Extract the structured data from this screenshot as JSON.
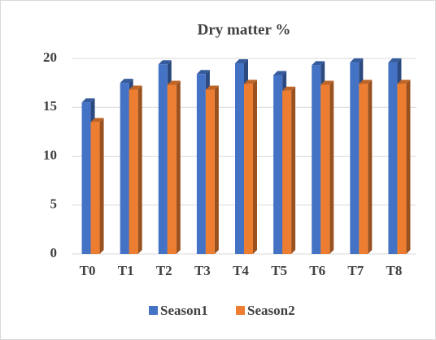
{
  "chart_data": {
    "type": "bar3d",
    "title": "Dry matter %",
    "categories": [
      "T0",
      "T1",
      "T2",
      "T3",
      "T4",
      "T5",
      "T6",
      "T7",
      "T8"
    ],
    "series": [
      {
        "name": "Season1",
        "color": "#4472c4",
        "values": [
          15.5,
          17.5,
          19.4,
          18.4,
          19.5,
          18.3,
          19.3,
          19.6,
          19.6
        ]
      },
      {
        "name": "Season2",
        "color": "#ed7d31",
        "values": [
          13.5,
          16.8,
          17.3,
          16.8,
          17.4,
          16.7,
          17.3,
          17.4,
          17.4
        ]
      }
    ],
    "ylim": [
      0,
      20
    ],
    "yticks": [
      0,
      5,
      10,
      15,
      20
    ],
    "grid": true,
    "legend": "bottom"
  }
}
